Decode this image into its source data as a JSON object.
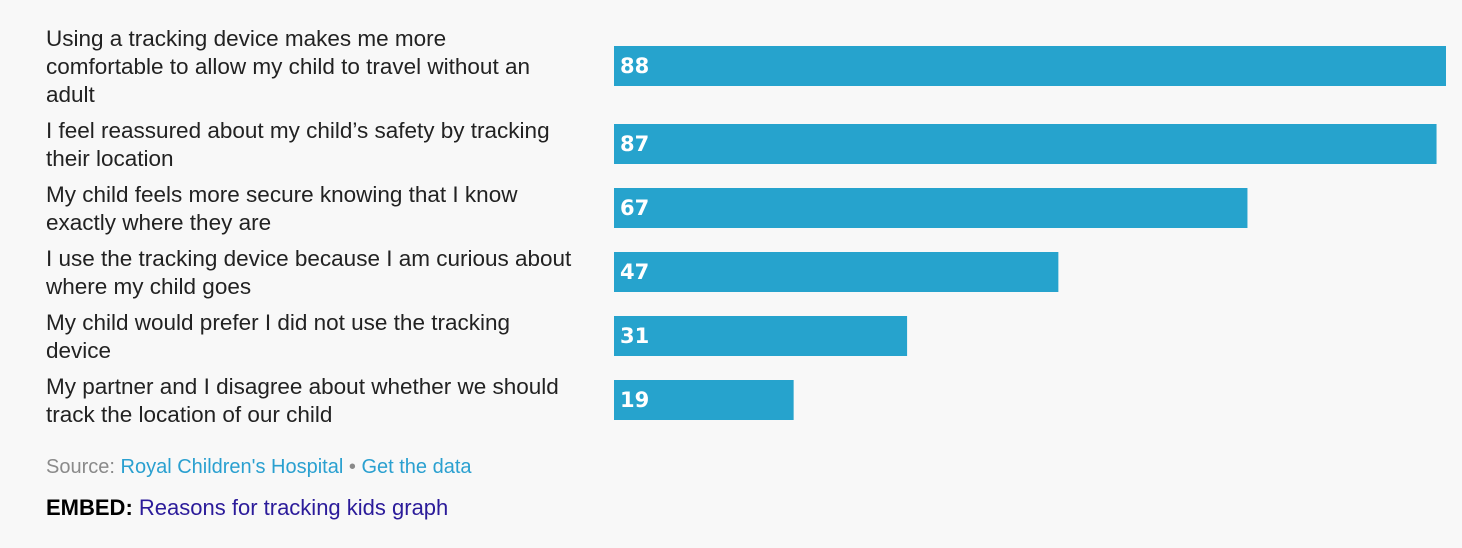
{
  "colors": {
    "bar": "#26a3cd",
    "label_text": "#222222",
    "value_text": "#ffffff",
    "source_text": "#8a8a8a",
    "link": "#2aa0d0",
    "embed_link": "#2b1b9a"
  },
  "chart_data": {
    "type": "bar",
    "orientation": "horizontal",
    "categories": [
      "Using a tracking device makes me more comfortable to allow my child to travel without an adult",
      "I feel reassured about my child’s safety by tracking their location",
      "My child feels more secure knowing that I know exactly where they are",
      "I use the tracking device because I am curious about where my child goes",
      "My child would prefer I did not use the tracking device",
      "My partner and I disagree about whether we should track the location of our child"
    ],
    "category_lines": [
      [
        "Using a tracking device makes me more",
        "comfortable to allow my child to travel without an",
        "adult"
      ],
      [
        "I feel reassured about my child’s safety by tracking",
        "their location"
      ],
      [
        "My child feels more secure knowing that I know",
        "exactly where they are"
      ],
      [
        "I use the tracking device because I am curious about",
        "where my child goes"
      ],
      [
        "My child would prefer I did not use the tracking",
        "device"
      ],
      [
        "My partner and I disagree about whether we should",
        "track the location of our child"
      ]
    ],
    "values": [
      88,
      87,
      67,
      47,
      31,
      19
    ],
    "data_labels": [
      "88",
      "87",
      "67",
      "47",
      "31",
      "19"
    ],
    "xlim": [
      0,
      88
    ],
    "grid": false,
    "legend": "none"
  },
  "footer": {
    "source_prefix": "Source:",
    "source_link": "Royal Children's Hospital",
    "separator": "•",
    "data_link": "Get the data",
    "embed_prefix": "EMBED:",
    "embed_link": "Reasons for tracking kids graph"
  }
}
